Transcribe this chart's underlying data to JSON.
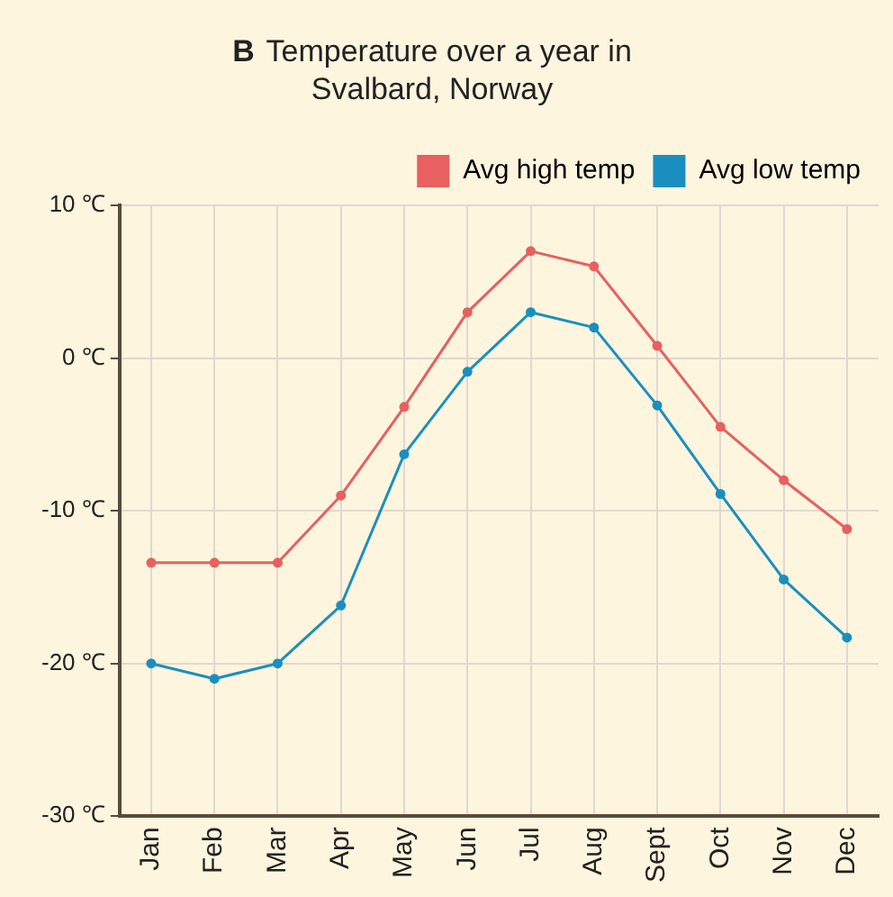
{
  "chart_data": {
    "type": "line",
    "title": "B Temperature over a year in Svalbard, Norway",
    "categories": [
      "Jan",
      "Feb",
      "Mar",
      "Apr",
      "May",
      "Jun",
      "Jul",
      "Aug",
      "Sept",
      "Oct",
      "Nov",
      "Dec"
    ],
    "series": [
      {
        "name": "Avg high temp",
        "color": "#e8605f",
        "values": [
          -13.4,
          -13.4,
          -13.4,
          -9,
          -3.2,
          3,
          7,
          6,
          0.8,
          -4.5,
          -8,
          -11.2
        ]
      },
      {
        "name": "Avg low temp",
        "color": "#1a8fbf",
        "values": [
          -20,
          -21,
          -20,
          -16.2,
          -6.3,
          -0.9,
          3,
          2,
          -3.1,
          -8.9,
          -14.5,
          -18.3
        ]
      }
    ],
    "ylim": [
      -30,
      10
    ],
    "yticks": [
      {
        "value": -30,
        "label": "-30 ℃"
      },
      {
        "value": -20,
        "label": "-20 ℃"
      },
      {
        "value": -10,
        "label": "-10 ℃"
      },
      {
        "value": 0,
        "label": "0 ℃"
      },
      {
        "value": 10,
        "label": "10 ℃"
      }
    ],
    "grid": true,
    "legend": "top right",
    "marker": "circle",
    "line_style": "solid"
  }
}
